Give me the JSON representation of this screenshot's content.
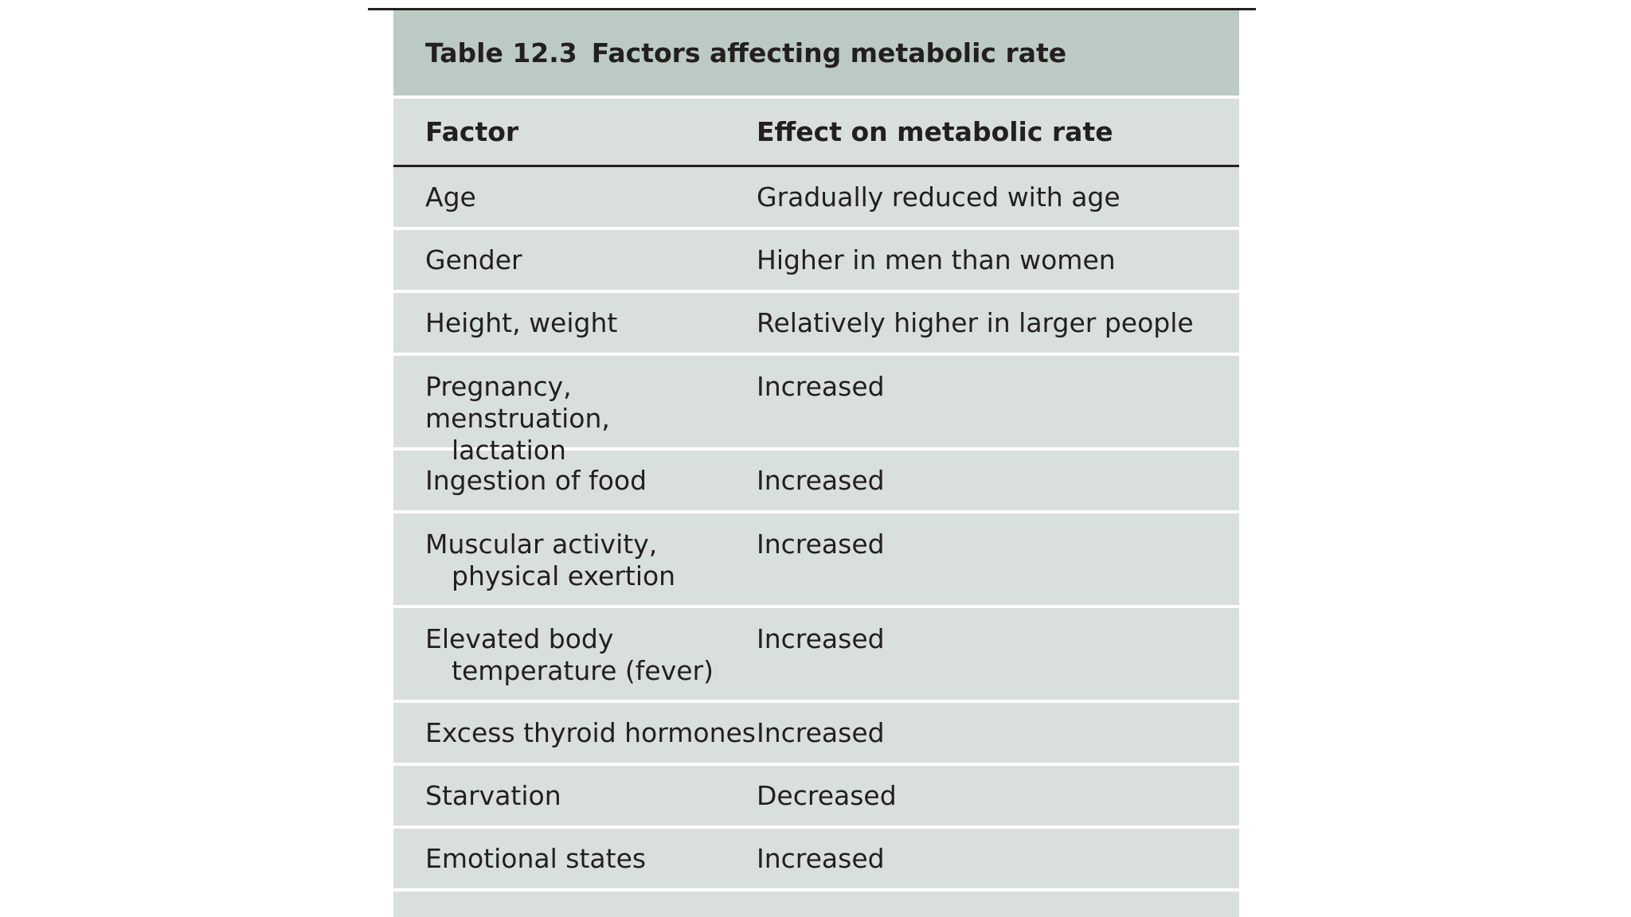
{
  "table": {
    "label": "Table 12.3",
    "title": "Factors affecting metabolic rate",
    "headers": {
      "factor": "Factor",
      "effect": "Effect on metabolic rate"
    },
    "rows": [
      {
        "factor": [
          "Age"
        ],
        "effect": "Gradually reduced with age"
      },
      {
        "factor": [
          "Gender"
        ],
        "effect": "Higher in men than women"
      },
      {
        "factor": [
          "Height, weight"
        ],
        "effect": "Relatively higher in larger people"
      },
      {
        "factor": [
          "Pregnancy, menstruation,",
          "lactation"
        ],
        "effect": "Increased"
      },
      {
        "factor": [
          "Ingestion of food"
        ],
        "effect": "Increased"
      },
      {
        "factor": [
          "Muscular activity,",
          "physical exertion"
        ],
        "effect": "Increased"
      },
      {
        "factor": [
          "Elevated body",
          "temperature (fever)"
        ],
        "effect": "Increased"
      },
      {
        "factor": [
          "Excess thyroid hormones"
        ],
        "effect": "Increased"
      },
      {
        "factor": [
          "Starvation"
        ],
        "effect": "Decreased"
      },
      {
        "factor": [
          "Emotional states"
        ],
        "effect": "Increased"
      }
    ]
  }
}
